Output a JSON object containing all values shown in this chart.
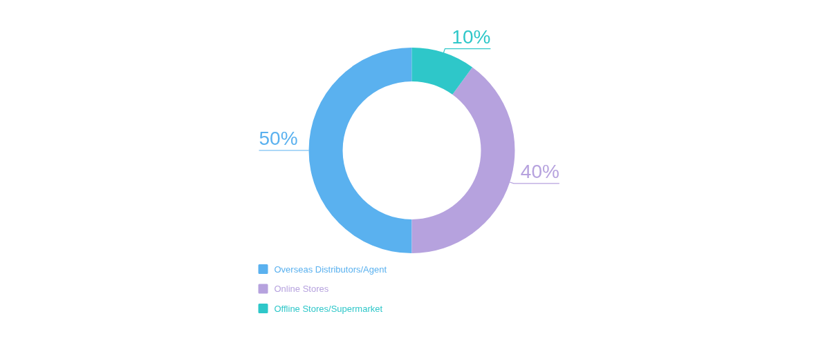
{
  "chart_data": {
    "type": "donut",
    "categories": [
      "Overseas Distributors/Agent",
      "Online Stores",
      "Offline Stores/Supermarket"
    ],
    "values": [
      50,
      40,
      10
    ],
    "colors": [
      "#5ab1ef",
      "#b6a2de",
      "#2ec7c9"
    ],
    "value_labels": [
      "50%",
      "40%",
      "10%"
    ],
    "legend": "bottom"
  }
}
